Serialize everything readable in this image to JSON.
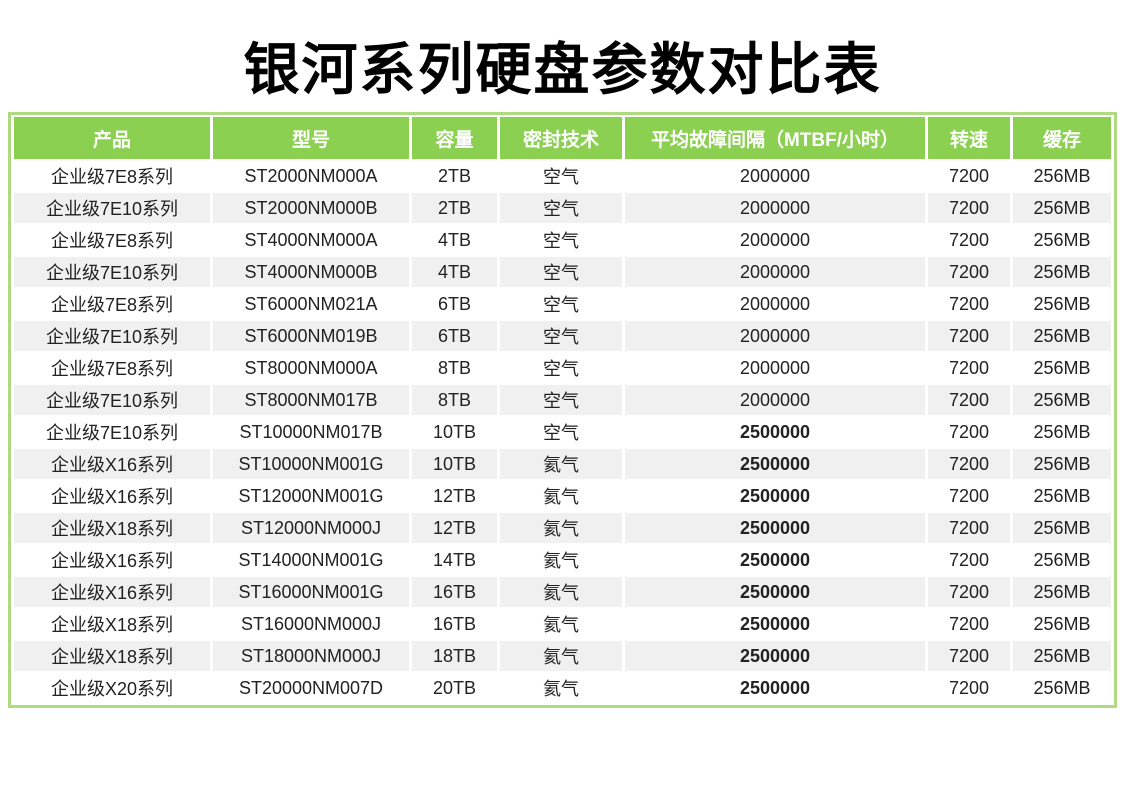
{
  "title": "银河系列硬盘参数对比表",
  "colors": {
    "header_bg": "#8cd052",
    "header_text": "#ffffff",
    "table_border": "#aedb7f",
    "row_bg": "#ffffff",
    "row_alt_bg": "#f0f0f0",
    "text": "#222222",
    "title_text": "#000000"
  },
  "chart_data": {
    "type": "table",
    "title": "银河系列硬盘参数对比表",
    "columns": [
      "产品",
      "型号",
      "容量",
      "密封技术",
      "平均故障间隔（MTBF/小时）",
      "转速",
      "缓存"
    ],
    "rows": [
      {
        "product": "企业级7E8系列",
        "model": "ST2000NM000A",
        "capacity": "2TB",
        "seal_tech": "空气",
        "mtbf": "2000000",
        "mtbf_bold": false,
        "rpm": "7200",
        "cache": "256MB"
      },
      {
        "product": "企业级7E10系列",
        "model": "ST2000NM000B",
        "capacity": "2TB",
        "seal_tech": "空气",
        "mtbf": "2000000",
        "mtbf_bold": false,
        "rpm": "7200",
        "cache": "256MB"
      },
      {
        "product": "企业级7E8系列",
        "model": "ST4000NM000A",
        "capacity": "4TB",
        "seal_tech": "空气",
        "mtbf": "2000000",
        "mtbf_bold": false,
        "rpm": "7200",
        "cache": "256MB"
      },
      {
        "product": "企业级7E10系列",
        "model": "ST4000NM000B",
        "capacity": "4TB",
        "seal_tech": "空气",
        "mtbf": "2000000",
        "mtbf_bold": false,
        "rpm": "7200",
        "cache": "256MB"
      },
      {
        "product": "企业级7E8系列",
        "model": "ST6000NM021A",
        "capacity": "6TB",
        "seal_tech": "空气",
        "mtbf": "2000000",
        "mtbf_bold": false,
        "rpm": "7200",
        "cache": "256MB"
      },
      {
        "product": "企业级7E10系列",
        "model": "ST6000NM019B",
        "capacity": "6TB",
        "seal_tech": "空气",
        "mtbf": "2000000",
        "mtbf_bold": false,
        "rpm": "7200",
        "cache": "256MB"
      },
      {
        "product": "企业级7E8系列",
        "model": "ST8000NM000A",
        "capacity": "8TB",
        "seal_tech": "空气",
        "mtbf": "2000000",
        "mtbf_bold": false,
        "rpm": "7200",
        "cache": "256MB"
      },
      {
        "product": "企业级7E10系列",
        "model": "ST8000NM017B",
        "capacity": "8TB",
        "seal_tech": "空气",
        "mtbf": "2000000",
        "mtbf_bold": false,
        "rpm": "7200",
        "cache": "256MB"
      },
      {
        "product": "企业级7E10系列",
        "model": "ST10000NM017B",
        "capacity": "10TB",
        "seal_tech": "空气",
        "mtbf": "2500000",
        "mtbf_bold": true,
        "rpm": "7200",
        "cache": "256MB"
      },
      {
        "product": "企业级X16系列",
        "model": "ST10000NM001G",
        "capacity": "10TB",
        "seal_tech": "氦气",
        "mtbf": "2500000",
        "mtbf_bold": true,
        "rpm": "7200",
        "cache": "256MB"
      },
      {
        "product": "企业级X16系列",
        "model": "ST12000NM001G",
        "capacity": "12TB",
        "seal_tech": "氦气",
        "mtbf": "2500000",
        "mtbf_bold": true,
        "rpm": "7200",
        "cache": "256MB"
      },
      {
        "product": "企业级X18系列",
        "model": "ST12000NM000J",
        "capacity": "12TB",
        "seal_tech": "氦气",
        "mtbf": "2500000",
        "mtbf_bold": true,
        "rpm": "7200",
        "cache": "256MB"
      },
      {
        "product": "企业级X16系列",
        "model": "ST14000NM001G",
        "capacity": "14TB",
        "seal_tech": "氦气",
        "mtbf": "2500000",
        "mtbf_bold": true,
        "rpm": "7200",
        "cache": "256MB"
      },
      {
        "product": "企业级X16系列",
        "model": "ST16000NM001G",
        "capacity": "16TB",
        "seal_tech": "氦气",
        "mtbf": "2500000",
        "mtbf_bold": true,
        "rpm": "7200",
        "cache": "256MB"
      },
      {
        "product": "企业级X18系列",
        "model": "ST16000NM000J",
        "capacity": "16TB",
        "seal_tech": "氦气",
        "mtbf": "2500000",
        "mtbf_bold": true,
        "rpm": "7200",
        "cache": "256MB"
      },
      {
        "product": "企业级X18系列",
        "model": "ST18000NM000J",
        "capacity": "18TB",
        "seal_tech": "氦气",
        "mtbf": "2500000",
        "mtbf_bold": true,
        "rpm": "7200",
        "cache": "256MB"
      },
      {
        "product": "企业级X20系列",
        "model": "ST20000NM007D",
        "capacity": "20TB",
        "seal_tech": "氦气",
        "mtbf": "2500000",
        "mtbf_bold": true,
        "rpm": "7200",
        "cache": "256MB"
      }
    ]
  }
}
